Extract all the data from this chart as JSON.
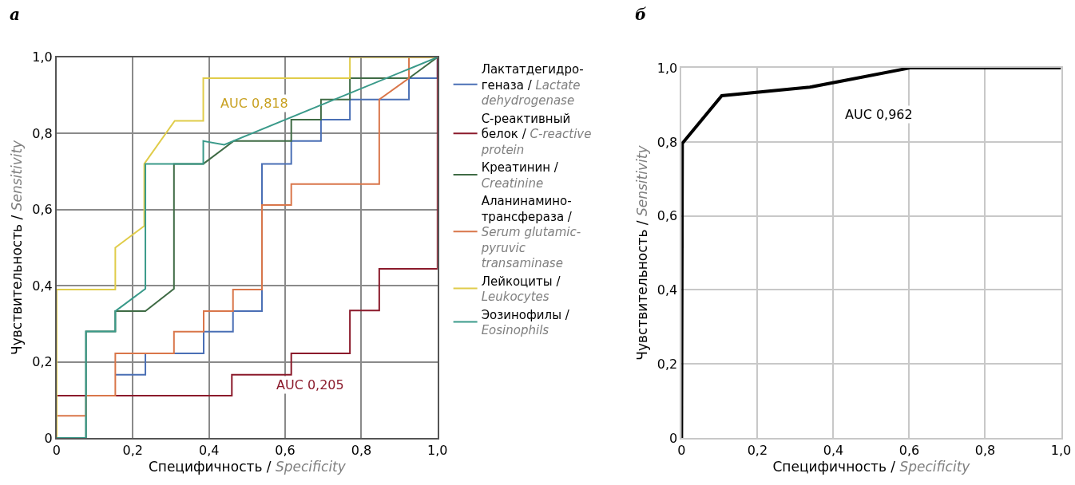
{
  "chart_data": [
    {
      "type": "line",
      "title": "а",
      "xlabel": "Специфичность / Specificity",
      "ylabel": "Чувствительность / Sensitivity",
      "xlim": [
        0,
        1
      ],
      "ylim": [
        0,
        1
      ],
      "xticks": [
        0,
        {
          "value": 0.2,
          "label": "0,2"
        },
        {
          "value": 0.4,
          "label": "0,4"
        },
        {
          "value": 0.6,
          "label": "0,6"
        },
        {
          "value": 0.8,
          "label": "0,8"
        },
        {
          "value": 1.0,
          "label": "1,0"
        }
      ],
      "yticks": [
        0,
        {
          "value": 0.2,
          "label": "0,2"
        },
        {
          "value": 0.4,
          "label": "0,4"
        },
        {
          "value": 0.6,
          "label": "0,6"
        },
        {
          "value": 0.8,
          "label": "0,8"
        },
        {
          "value": 1.0,
          "label": "1,0"
        }
      ],
      "grid": true,
      "legend": "right",
      "marker": "none",
      "line_style": "solid",
      "series": [
        {
          "name": "Лактатдегидро-\nгеназа / Lactate\ndehydrogenase",
          "color": "#4a6fb5",
          "x": [
            0.154,
            0.233,
            0.233,
            0.386,
            0.386,
            0.463,
            0.463,
            0.539,
            0.539,
            0.616,
            0.616,
            0.694,
            0.694,
            0.77,
            0.77,
            0.925,
            0.925,
            1,
            1
          ],
          "values": [
            0.166,
            0.166,
            0.222,
            0.222,
            0.279,
            0.279,
            0.333,
            0.333,
            0.72,
            0.72,
            0.78,
            0.78,
            0.836,
            0.836,
            0.889,
            0.889,
            0.945,
            0.945,
            1
          ]
        },
        {
          "name": "С-реактивный\nбелок / C-reactive\nprotein",
          "color": "#8b1a2b",
          "x": [
            0,
            0,
            0.46,
            0.46,
            0.616,
            0.616,
            0.77,
            0.77,
            0.847,
            0.847,
            1,
            1
          ],
          "values": [
            0,
            0.111,
            0.111,
            0.166,
            0.166,
            0.222,
            0.222,
            0.335,
            0.335,
            0.444,
            0.444,
            1
          ]
        },
        {
          "name": "Креатинин /\nCreatinine",
          "color": "#3f6b45",
          "x": [
            0,
            0.077,
            0.077,
            0.154,
            0.154,
            0.233,
            0.308,
            0.308,
            0.385,
            0.465,
            0.616,
            0.616,
            0.694,
            0.694,
            0.77,
            0.77,
            0.925,
            1
          ],
          "values": [
            0,
            0,
            0.28,
            0.28,
            0.333,
            0.333,
            0.392,
            0.72,
            0.72,
            0.78,
            0.78,
            0.836,
            0.836,
            0.889,
            0.889,
            0.945,
            0.945,
            1
          ]
        },
        {
          "name": "Аланинамино-\nтрансфераза /\nSerum glutamic-\npyruvic\ntransaminase",
          "color": "#d9764a",
          "x": [
            0,
            0,
            0.077,
            0.077,
            0.154,
            0.154,
            0.308,
            0.308,
            0.386,
            0.386,
            0.463,
            0.463,
            0.539,
            0.539,
            0.616,
            0.616,
            0.847,
            0.847,
            0.925,
            0.925,
            1
          ],
          "values": [
            0,
            0.058,
            0.058,
            0.111,
            0.111,
            0.222,
            0.222,
            0.279,
            0.279,
            0.333,
            0.333,
            0.39,
            0.39,
            0.612,
            0.612,
            0.667,
            0.667,
            0.889,
            0.945,
            1,
            1
          ]
        },
        {
          "name": "Лейкоциты /\nLeukocytes",
          "color": "#e0cc4a",
          "x": [
            0,
            0,
            0.154,
            0.154,
            0.23,
            0.23,
            0.31,
            0.385,
            0.385,
            0.77,
            0.77,
            1
          ],
          "values": [
            0,
            0.39,
            0.39,
            0.5,
            0.557,
            0.72,
            0.833,
            0.833,
            0.945,
            0.945,
            1,
            1
          ]
        },
        {
          "name": "Эозинофилы /\nEosinophils",
          "color": "#3a9a8a",
          "x": [
            0,
            0.077,
            0.077,
            0.154,
            0.154,
            0.233,
            0.233,
            0.385,
            0.385,
            0.44,
            1
          ],
          "values": [
            0,
            0,
            0.28,
            0.28,
            0.333,
            0.392,
            0.72,
            0.72,
            0.78,
            0.77,
            1
          ]
        }
      ],
      "annotations": [
        "AUC 0,818",
        "AUC 0,205"
      ]
    },
    {
      "type": "line",
      "title": "б",
      "xlabel": "Специфичность / Specificity",
      "ylabel": "Чувствительность / Sensitivity",
      "xlim": [
        0,
        1
      ],
      "ylim": [
        0,
        1
      ],
      "xticks": [
        0,
        {
          "value": 0.2,
          "label": "0,2"
        },
        {
          "value": 0.4,
          "label": "0,4"
        },
        {
          "value": 0.6,
          "label": "0,6"
        },
        {
          "value": 0.8,
          "label": "0,8"
        },
        {
          "value": 1.0,
          "label": "1,0"
        }
      ],
      "yticks": [
        0,
        {
          "value": 0.2,
          "label": "0,2"
        },
        {
          "value": 0.4,
          "label": "0,4"
        },
        {
          "value": 0.6,
          "label": "0,6"
        },
        {
          "value": 0.8,
          "label": "0,8"
        },
        {
          "value": 1.0,
          "label": "1,0"
        }
      ],
      "grid": true,
      "marker": "none",
      "line_style": "solid",
      "series": [
        {
          "color": "#000000",
          "x": [
            0,
            0.002,
            0.106,
            0.338,
            0.456,
            0.602,
            1
          ],
          "values": [
            0,
            0.796,
            0.925,
            0.948,
            0.971,
            1,
            1
          ]
        }
      ],
      "annotations": [
        "AUC 0,962"
      ]
    }
  ]
}
